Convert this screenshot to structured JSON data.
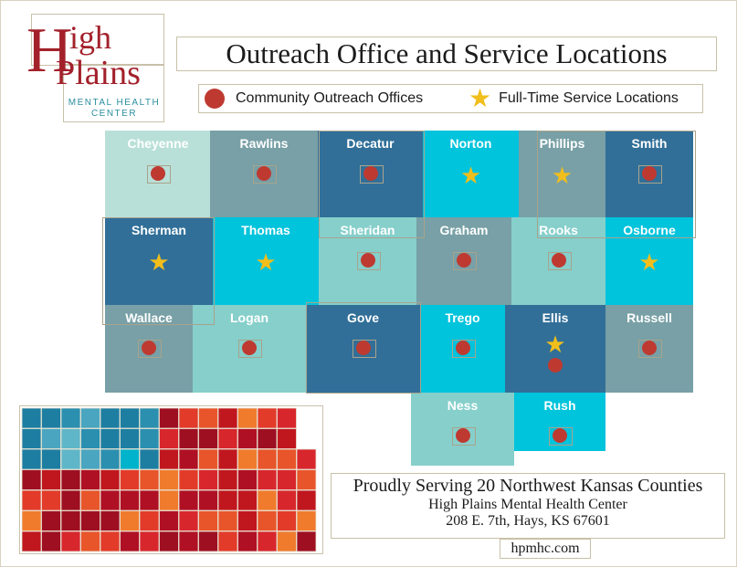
{
  "logo": {
    "letter_h1": "H",
    "text_igh": "igh",
    "letter_h2": "H",
    "text_plains": "Plains",
    "subtitle_1": "MENTAL HEALTH",
    "subtitle_2": "CENTER"
  },
  "title": "Outreach Office and Service Locations",
  "legend": {
    "office_label": "Community Outreach Offices",
    "service_label": "Full-Time Service Locations"
  },
  "colors": {
    "darkblue": "#316f98",
    "cyan": "#00c3dc",
    "lightteal": "#86cfcb",
    "grayteal": "#78a0a6",
    "palemint": "#b9e0d8",
    "office_dot": "#be3a31",
    "service_star": "#f1be1c"
  },
  "counties": [
    {
      "name": "Cheyenne",
      "color": "palemint",
      "marker": "office"
    },
    {
      "name": "Rawlins",
      "color": "grayteal",
      "marker": "office"
    },
    {
      "name": "Decatur",
      "color": "darkblue",
      "marker": "office"
    },
    {
      "name": "Norton",
      "color": "cyan",
      "marker": "service"
    },
    {
      "name": "Phillips",
      "color": "grayteal",
      "marker": "service"
    },
    {
      "name": "Smith",
      "color": "darkblue",
      "marker": "office"
    },
    {
      "name": "Sherman",
      "color": "darkblue",
      "marker": "service"
    },
    {
      "name": "Thomas",
      "color": "cyan",
      "marker": "service"
    },
    {
      "name": "Sheridan",
      "color": "lightteal",
      "marker": "office"
    },
    {
      "name": "Graham",
      "color": "grayteal",
      "marker": "office"
    },
    {
      "name": "Rooks",
      "color": "lightteal",
      "marker": "office"
    },
    {
      "name": "Osborne",
      "color": "cyan",
      "marker": "service"
    },
    {
      "name": "Wallace",
      "color": "grayteal",
      "marker": "office"
    },
    {
      "name": "Logan",
      "color": "lightteal",
      "marker": "office"
    },
    {
      "name": "Gove",
      "color": "darkblue",
      "marker": "office"
    },
    {
      "name": "Trego",
      "color": "cyan",
      "marker": "office"
    },
    {
      "name": "Ellis",
      "color": "darkblue",
      "marker": "both"
    },
    {
      "name": "Russell",
      "color": "grayteal",
      "marker": "office"
    },
    {
      "name": "Ness",
      "color": "lightteal",
      "marker": "office"
    },
    {
      "name": "Rush",
      "color": "cyan",
      "marker": "office"
    }
  ],
  "footer": {
    "line1": "Proudly Serving 20 Northwest Kansas Counties",
    "line2": "High Plains Mental Health Center",
    "line3": "208 E. 7th, Hays, KS 67601",
    "url": "hpmhc.com"
  }
}
